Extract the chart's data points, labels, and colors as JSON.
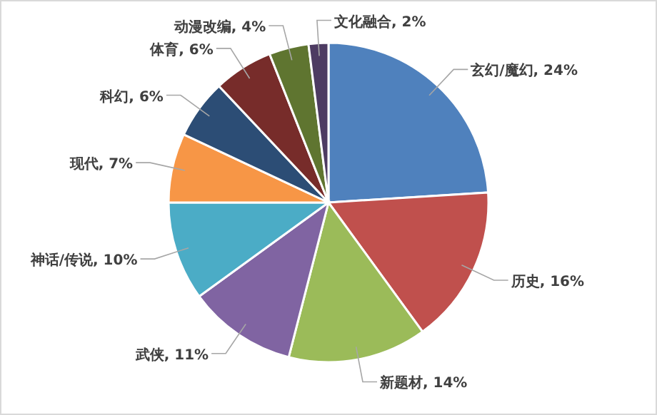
{
  "chart_data": {
    "type": "pie",
    "categories": [
      "玄幻/魔幻",
      "历史",
      "新题材",
      "武侠",
      "神话/传说",
      "现代",
      "科幻",
      "体育",
      "动漫改编",
      "文化融合"
    ],
    "values": [
      24,
      16,
      14,
      11,
      10,
      7,
      6,
      6,
      4,
      2
    ],
    "colors": [
      "#4f81bd",
      "#c0504d",
      "#9bbb59",
      "#8064a2",
      "#4bacc6",
      "#f79646",
      "#2c4d75",
      "#772c2a",
      "#5f7530",
      "#4d3b62"
    ],
    "value_labels": [
      "24%",
      "16%",
      "14%",
      "11%",
      "10%",
      "7%",
      "6%",
      "6%",
      "4%",
      "2%"
    ],
    "legend": false
  }
}
